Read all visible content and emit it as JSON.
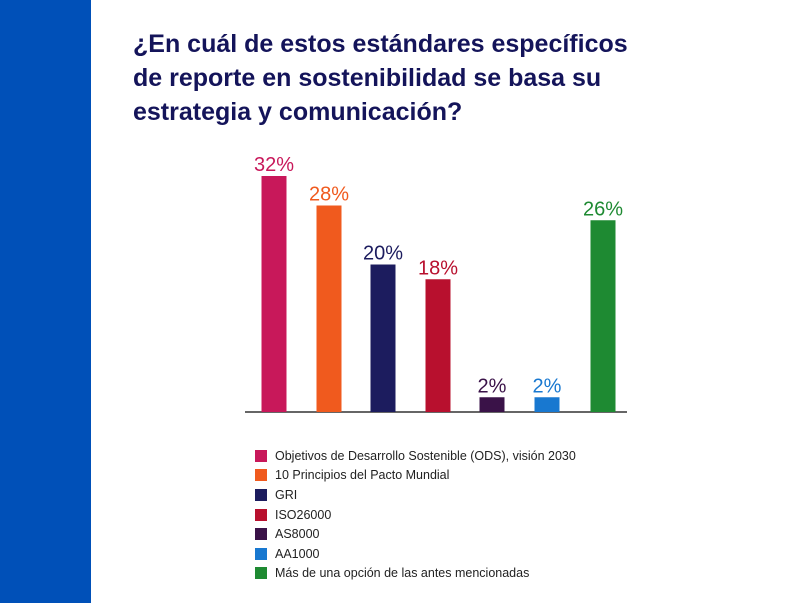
{
  "title_lines": [
    "¿En cuál de estos estándares específicos",
    "de reporte en sostenibilidad se basa su",
    "estrategia y comunicación?"
  ],
  "colors": {
    "side_bar": "#0050b8",
    "title": "#14145a"
  },
  "chart_data": {
    "type": "bar",
    "categories": [
      "Objetivos de Desarrollo Sostenible (ODS), visión 2030",
      "10 Principios del Pacto Mundial",
      "GRI",
      "ISO26000",
      "AS8000",
      "AA1000",
      "Más de una opción de las antes mencionadas"
    ],
    "values": [
      32,
      28,
      20,
      18,
      2,
      2,
      26
    ],
    "value_labels": [
      "32%",
      "28%",
      "20%",
      "18%",
      "2%",
      "2%",
      "26%"
    ],
    "colors": [
      "#c8185a",
      "#f05a1e",
      "#1c1c5e",
      "#b8102e",
      "#3a1248",
      "#1878d0",
      "#1e8a32"
    ],
    "ylim": [
      0,
      32
    ],
    "grid": false,
    "legend_position": "bottom",
    "title": "",
    "xlabel": "",
    "ylabel": ""
  }
}
